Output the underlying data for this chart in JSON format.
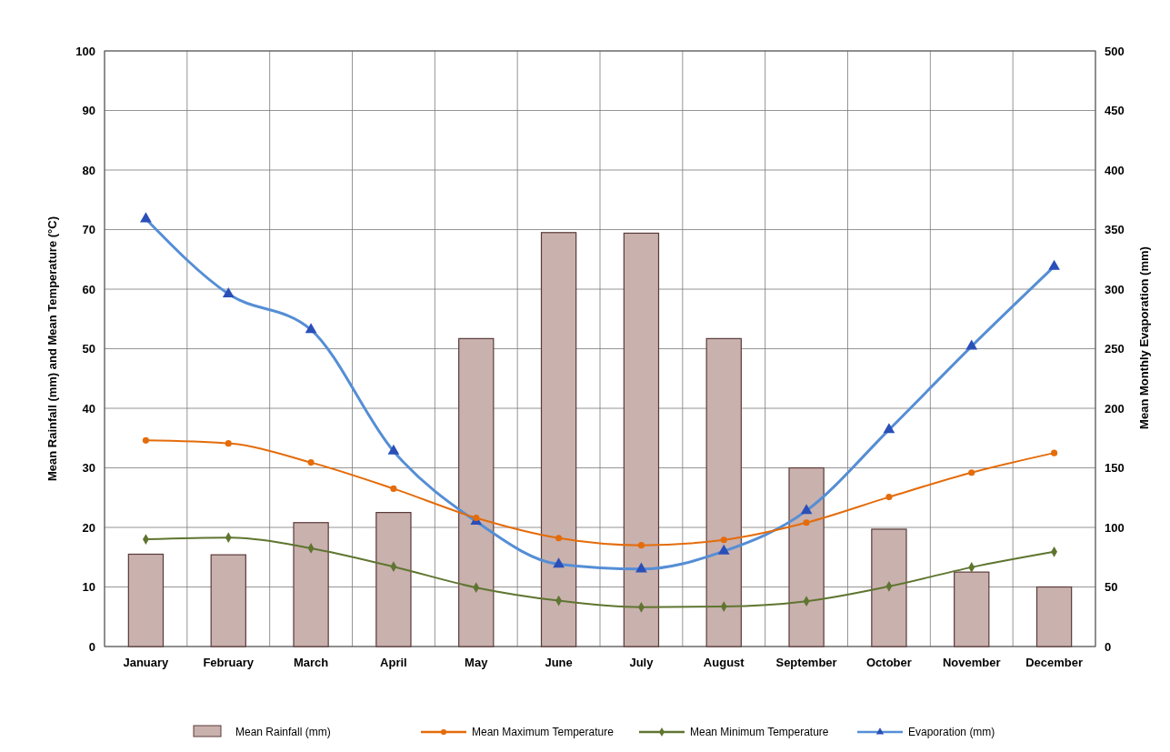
{
  "chart_data": {
    "type": "bar",
    "ylabel": "Mean Rainfall  (mm) and Mean Temperature (°C)",
    "y2label": "Mean Monthly Evaporation (mm)",
    "categories": [
      "January",
      "February",
      "March",
      "April",
      "May",
      "June",
      "July",
      "August",
      "September",
      "October",
      "November",
      "December"
    ],
    "series": [
      {
        "name": "Mean Rainfall (mm)",
        "color": "#c9b1ae",
        "values": [
          15.5,
          15.4,
          20.8,
          22.5,
          51.7,
          69.5,
          69.4,
          51.7,
          30,
          19.7,
          12.5,
          10
        ]
      },
      {
        "name": "Mean Maximum Temperature",
        "type": "line",
        "color": "#e46c0a",
        "marker": "circle",
        "values": [
          34.6,
          34.1,
          30.9,
          26.5,
          21.6,
          18.2,
          17.0,
          17.9,
          20.8,
          25.1,
          29.2,
          32.5
        ]
      },
      {
        "name": "Mean Minimum Temperature",
        "type": "line",
        "color": "#5f7530",
        "marker": "diamond",
        "values": [
          18.0,
          18.3,
          16.5,
          13.4,
          9.9,
          7.7,
          6.6,
          6.7,
          7.6,
          10.1,
          13.3,
          15.9
        ]
      },
      {
        "name": "Evaporation (mm)",
        "type": "line",
        "color": "#558ed5",
        "marker": "triangle",
        "axis": "y2",
        "values": [
          359,
          296,
          266,
          164,
          105,
          69,
          65,
          80,
          114,
          182,
          252,
          319
        ]
      }
    ],
    "ylim": [
      0,
      100
    ],
    "yticks": [
      0,
      10,
      20,
      30,
      40,
      50,
      60,
      70,
      80,
      90,
      100
    ],
    "y2lim": [
      0,
      500
    ],
    "y2ticks": [
      0,
      50,
      100,
      150,
      200,
      250,
      300,
      350,
      400,
      450,
      500
    ],
    "grid": true,
    "legend": "bottom"
  }
}
